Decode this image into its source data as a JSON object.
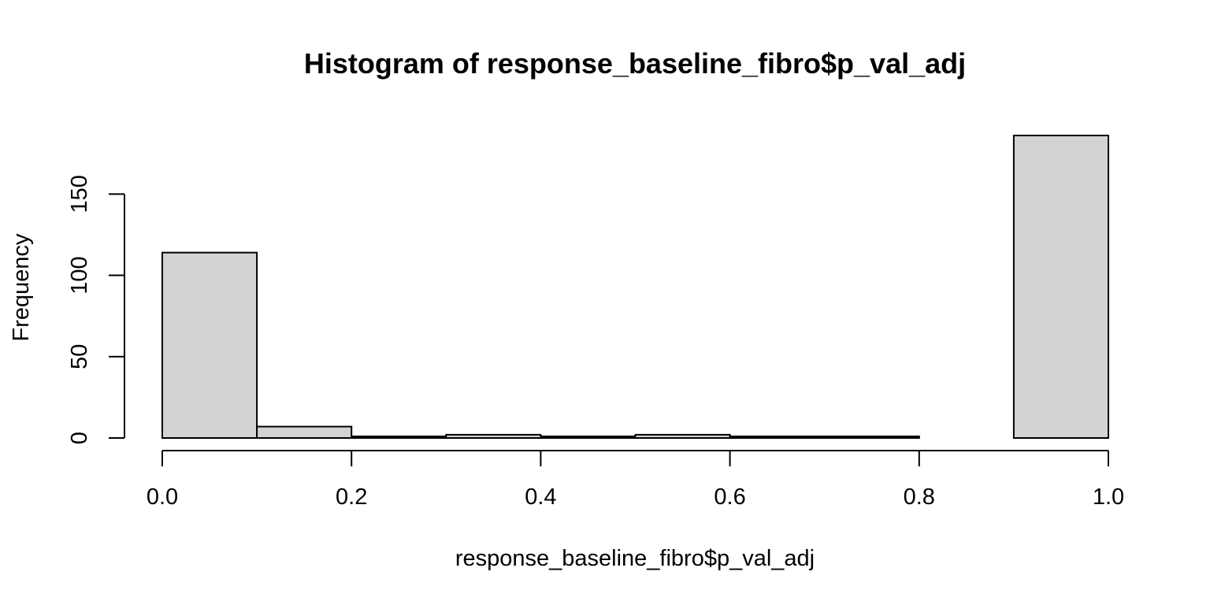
{
  "chart_data": {
    "type": "bar",
    "title": "Histogram of response_baseline_fibro$p_val_adj",
    "xlabel": "response_baseline_fibro$p_val_adj",
    "ylabel": "Frequency",
    "bin_edges": [
      0.0,
      0.1,
      0.2,
      0.3,
      0.4,
      0.5,
      0.6,
      0.7,
      0.8,
      0.9,
      1.0
    ],
    "values": [
      114,
      7,
      1,
      2,
      1,
      2,
      1,
      1,
      0,
      186
    ],
    "xlim": [
      0.0,
      1.0
    ],
    "ylim": [
      0,
      186
    ],
    "x_ticks": [
      0.0,
      0.2,
      0.4,
      0.6,
      0.8,
      1.0
    ],
    "x_tick_labels": [
      "0.0",
      "0.2",
      "0.4",
      "0.6",
      "0.8",
      "1.0"
    ],
    "y_ticks": [
      0,
      50,
      100,
      150
    ],
    "y_tick_labels": [
      "0",
      "50",
      "100",
      "150"
    ],
    "grid": false,
    "bar_color": "#d3d3d3",
    "bar_border_color": "#000000"
  }
}
